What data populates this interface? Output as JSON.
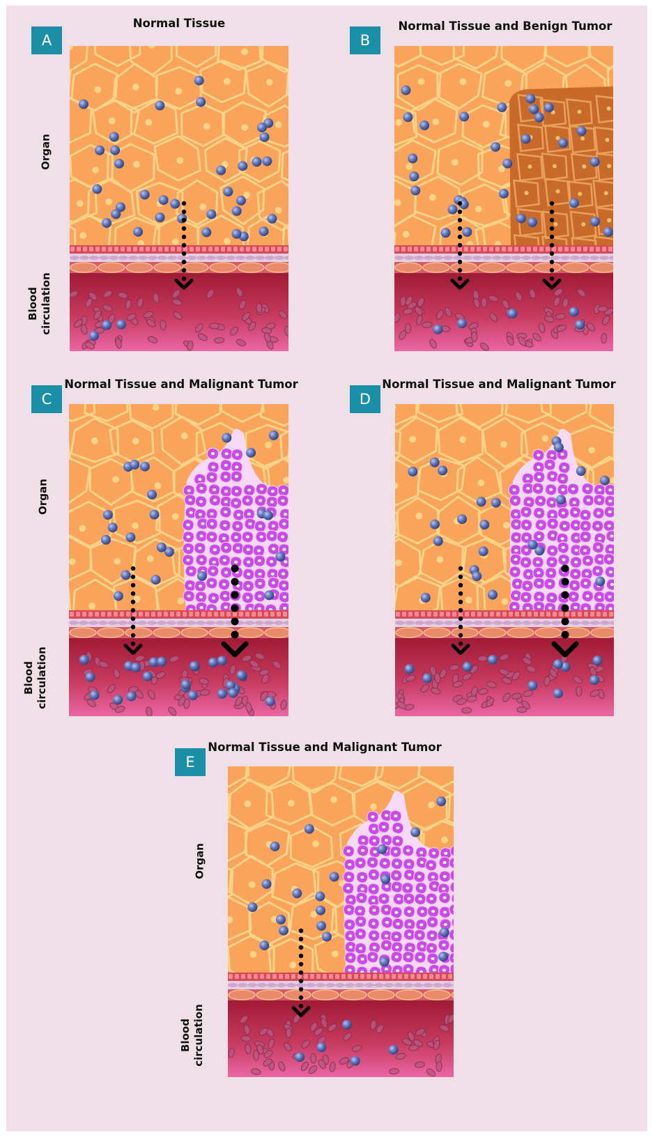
{
  "labels": {
    "organ": "Organ",
    "blood_line1": "Blood",
    "blood_line2": "circulation"
  },
  "panels": [
    {
      "letter": "A",
      "title": "Normal Tissue",
      "tumor": "none"
    },
    {
      "letter": "B",
      "title": "Normal Tissue and Benign Tumor",
      "tumor": "benign"
    },
    {
      "letter": "C",
      "title": "Normal Tissue and Malignant Tumor",
      "tumor": "malignant"
    },
    {
      "letter": "D",
      "title": "Normal Tissue and Malignant Tumor",
      "tumor": "malignant"
    },
    {
      "letter": "E",
      "title": "Normal Tissue and Malignant Tumor",
      "tumor": "malignant"
    }
  ],
  "colors": {
    "background": "#efdfe7",
    "badge": "#1b8fa6",
    "organ_cell": "#f9a45a",
    "organ_membrane": "#fcd389",
    "benign_tumor": "#c86b2a",
    "malignant_tumor": "#c84be6",
    "blood": "#a01b35",
    "blood_bottom": "#ea66a4",
    "marker_particle": "#5f73b8"
  }
}
